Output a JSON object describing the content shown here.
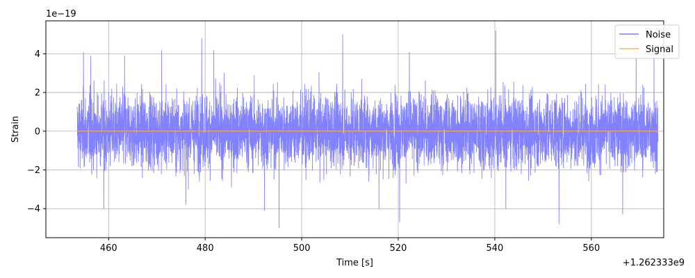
{
  "chart_data": {
    "type": "line",
    "xlabel": "Time [s]",
    "ylabel": "Strain",
    "x_offset_label": "+1.262333e9",
    "y_scale_label": "1e−19",
    "xlim": [
      447,
      575
    ],
    "ylim": [
      -5.5,
      5.7
    ],
    "x_ticks": [
      460,
      480,
      500,
      520,
      540,
      560
    ],
    "x_tick_labels": [
      "460",
      "480",
      "500",
      "520",
      "540",
      "560"
    ],
    "y_ticks": [
      -4,
      -2,
      0,
      2,
      4
    ],
    "y_tick_labels": [
      "−4",
      "−2",
      "0",
      "2",
      "4"
    ],
    "grid": true,
    "legend_position": "top-right",
    "series": [
      {
        "name": "Noise",
        "color": "#7b7bff",
        "x_range": [
          453.5,
          573.8
        ],
        "typical_amplitude": 2.2,
        "peaks": [
          {
            "x": 454.8,
            "y": 4.1
          },
          {
            "x": 456.3,
            "y": 3.9
          },
          {
            "x": 459.0,
            "y": -4.0
          },
          {
            "x": 463.3,
            "y": 3.9
          },
          {
            "x": 471.0,
            "y": 4.2
          },
          {
            "x": 476.0,
            "y": -3.8
          },
          {
            "x": 479.3,
            "y": 4.8
          },
          {
            "x": 481.8,
            "y": 4.2
          },
          {
            "x": 492.3,
            "y": -4.1
          },
          {
            "x": 495.3,
            "y": -5.0
          },
          {
            "x": 508.5,
            "y": 5.0
          },
          {
            "x": 516.0,
            "y": -4.0
          },
          {
            "x": 520.3,
            "y": -4.7
          },
          {
            "x": 522.3,
            "y": 4.1
          },
          {
            "x": 540.2,
            "y": 5.2
          },
          {
            "x": 542.3,
            "y": -4.0
          },
          {
            "x": 553.3,
            "y": -4.8
          },
          {
            "x": 566.5,
            "y": -4.3
          },
          {
            "x": 573.0,
            "y": 3.9
          },
          {
            "x": 569.3,
            "y": 3.9
          }
        ]
      },
      {
        "name": "Signal",
        "color": "#f5a742",
        "x_range": [
          453.5,
          573.8
        ],
        "values": [
          0,
          0
        ]
      }
    ]
  }
}
